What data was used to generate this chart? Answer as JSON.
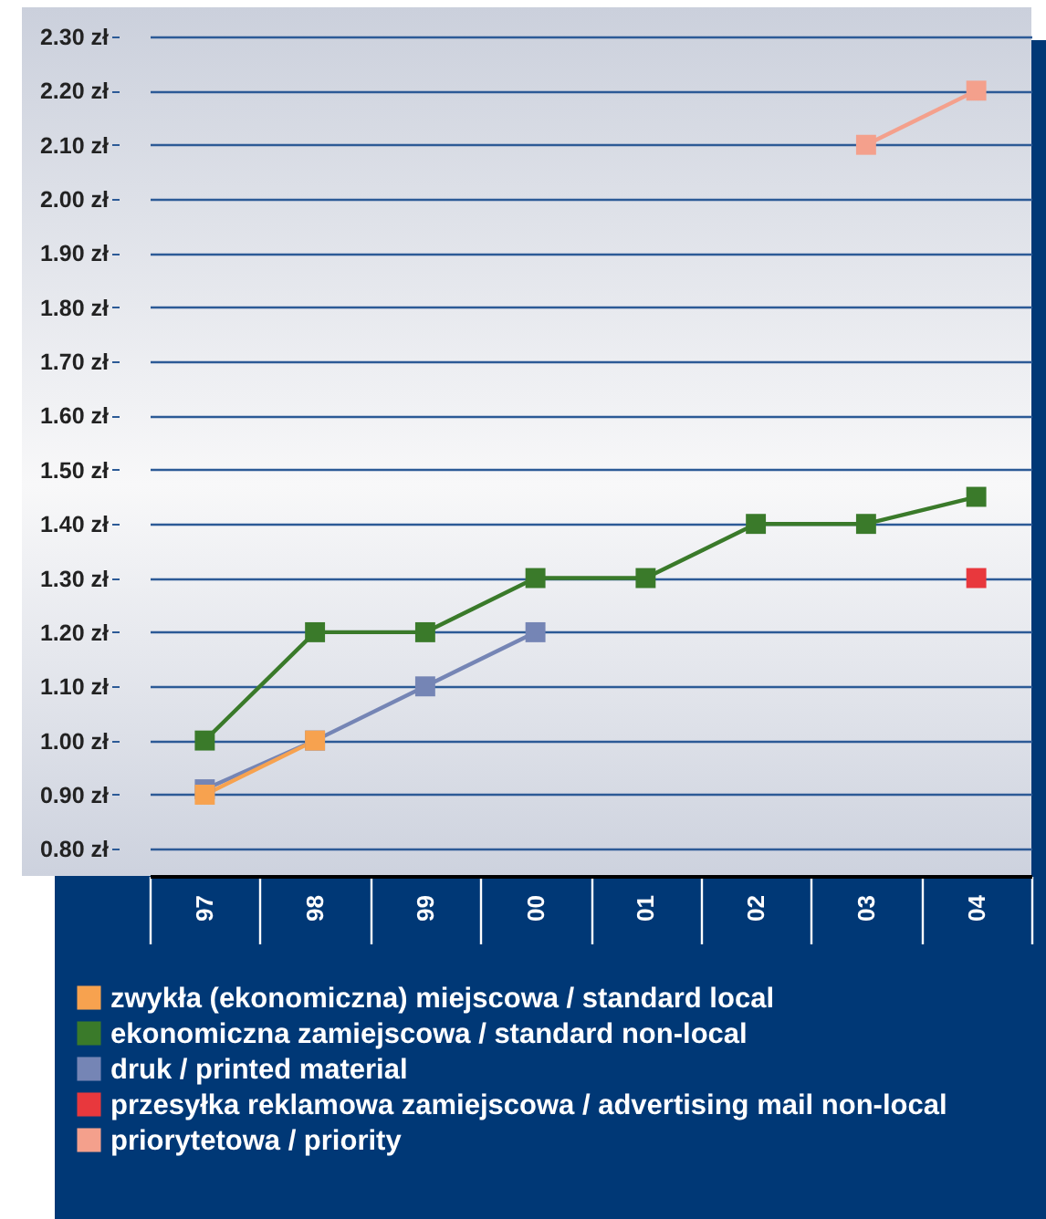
{
  "chart_data": {
    "type": "line",
    "categories": [
      "97",
      "98",
      "99",
      "00",
      "01",
      "02",
      "03",
      "04"
    ],
    "series": [
      {
        "name": "zwykła (ekonomiczna) miejscowa / standard local",
        "color": "#f7a24f",
        "values": [
          0.9,
          1.0,
          null,
          null,
          null,
          null,
          null,
          null
        ]
      },
      {
        "name": "ekonomiczna zamiejscowa / standard non-local",
        "color": "#3a7a2a",
        "values": [
          1.0,
          1.2,
          1.2,
          1.3,
          1.3,
          1.4,
          1.4,
          1.45
        ]
      },
      {
        "name": "druk / printed material",
        "color": "#7585b5",
        "values": [
          0.91,
          1.0,
          1.1,
          1.2,
          null,
          null,
          null,
          null
        ]
      },
      {
        "name": "przesyłka reklamowa zamiejscowa / advertising mail non-local",
        "color": "#e8383d",
        "values": [
          null,
          null,
          null,
          null,
          null,
          null,
          null,
          1.3
        ]
      },
      {
        "name": "priorytetowa / priority",
        "color": "#f4a08c",
        "values": [
          null,
          null,
          null,
          null,
          null,
          null,
          2.1,
          2.2
        ]
      }
    ],
    "ylim": [
      0.75,
      2.3
    ],
    "yticks": [
      {
        "value": 0.8,
        "label": "0.80 zł"
      },
      {
        "value": 0.9,
        "label": "0.90 zł"
      },
      {
        "value": 1.0,
        "label": "1.00 zł"
      },
      {
        "value": 1.1,
        "label": "1.10 zł"
      },
      {
        "value": 1.2,
        "label": "1.20 zł"
      },
      {
        "value": 1.3,
        "label": "1.30 zł"
      },
      {
        "value": 1.4,
        "label": "1.40 zł"
      },
      {
        "value": 1.5,
        "label": "1.50 zł"
      },
      {
        "value": 1.6,
        "label": "1.60 zł"
      },
      {
        "value": 1.7,
        "label": "1.70 zł"
      },
      {
        "value": 1.8,
        "label": "1.80 zł"
      },
      {
        "value": 1.9,
        "label": "1.90 zł"
      },
      {
        "value": 2.0,
        "label": "2.00 zł"
      },
      {
        "value": 2.1,
        "label": "2.10 zł"
      },
      {
        "value": 2.2,
        "label": "2.20 zł"
      },
      {
        "value": 2.3,
        "label": "2.30 zł"
      }
    ],
    "grid": "y",
    "legend": "bottom",
    "marker": "square",
    "line_style": "solid"
  }
}
